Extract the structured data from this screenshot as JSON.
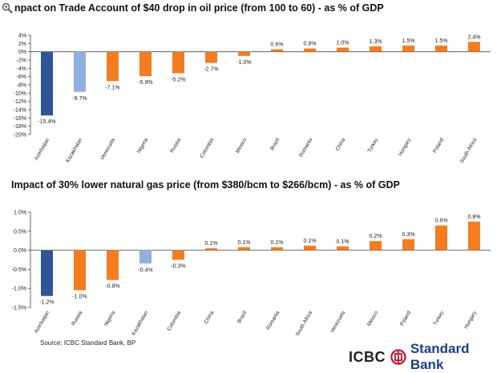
{
  "titles": {
    "chart1": "npact on Trade Account of $40 drop in oil price (from 100 to 60) - as % of GDP",
    "chart2": "Impact of 30% lower natural gas price (from $380/bcm to $266/bcm) - as % of GDP"
  },
  "source": "Source: ICBC Standard Bank, BP",
  "logo": {
    "icbc": "ICBC",
    "standard_bank": "Standard Bank"
  },
  "colors": {
    "dark_blue": "#2e5597",
    "light_blue": "#8fb0e0",
    "orange": "#f57c1f",
    "logo_red": "#c8102e"
  },
  "chart_data": [
    {
      "type": "bar",
      "title": "npact on Trade Account of $40 drop in oil price (from 100 to 60) - as % of GDP",
      "categories": [
        "Azerbaijan",
        "Kazakhstan",
        "Venezuela",
        "Nigeria",
        "Russia",
        "Colombia",
        "Mexico",
        "Brazil",
        "Romania",
        "China",
        "Turkey",
        "Hungary",
        "Poland",
        "South Africa"
      ],
      "values": [
        -15.4,
        -9.7,
        -7.1,
        -5.9,
        -5.2,
        -2.7,
        -1.0,
        0.6,
        0.8,
        1.0,
        1.3,
        1.5,
        1.5,
        2.4
      ],
      "labels": [
        "-15.4%",
        "-9.7%",
        "-7.1%",
        "-5.9%",
        "-5.2%",
        "-2.7%",
        "-1.0%",
        "0.6%",
        "0.8%",
        "1.0%",
        "1.3%",
        "1.5%",
        "1.5%",
        "2.4%"
      ],
      "bar_colors": [
        "dark_blue",
        "light_blue",
        "orange",
        "orange",
        "orange",
        "orange",
        "orange",
        "orange",
        "orange",
        "orange",
        "orange",
        "orange",
        "orange",
        "orange"
      ],
      "yticks": [
        "4%",
        "2%",
        "0%",
        "-2%",
        "-4%",
        "-6%",
        "-8%",
        "-10%",
        "-12%",
        "-14%",
        "-16%",
        "-18%",
        "-20%"
      ],
      "ylim": [
        -20,
        4
      ],
      "tick_step": 2
    },
    {
      "type": "bar",
      "title": "Impact of 30% lower natural gas price (from $380/bcm to $266/bcm) - as % of GDP",
      "categories": [
        "Azerbaijan",
        "Russia",
        "Nigeria",
        "Kazakhstan",
        "Colombia",
        "China",
        "Brazil",
        "Romania",
        "South Africa",
        "Venezuela",
        "Mexico",
        "Poland",
        "Turkey",
        "Hungary"
      ],
      "values": [
        -1.2,
        -1.05,
        -0.78,
        -0.35,
        -0.25,
        0.05,
        0.08,
        0.08,
        0.12,
        0.1,
        0.24,
        0.29,
        0.65,
        0.75
      ],
      "labels": [
        "-1.2%",
        "-1.0%",
        "-0.8%",
        "-0.4%",
        "-0.3%",
        "0.1%",
        "0.1%",
        "0.1%",
        "0.1%",
        "0.1%",
        "0.2%",
        "0.3%",
        "0.6%",
        "0.8%"
      ],
      "bar_colors": [
        "dark_blue",
        "orange",
        "orange",
        "light_blue",
        "orange",
        "orange",
        "orange",
        "orange",
        "orange",
        "orange",
        "orange",
        "orange",
        "orange",
        "orange"
      ],
      "yticks": [
        "1.0%",
        "0.5%",
        "0.0%",
        "-0.5%",
        "-1.0%",
        "-1.5%"
      ],
      "ylim": [
        -1.5,
        1.0
      ],
      "tick_step": 0.5
    }
  ]
}
